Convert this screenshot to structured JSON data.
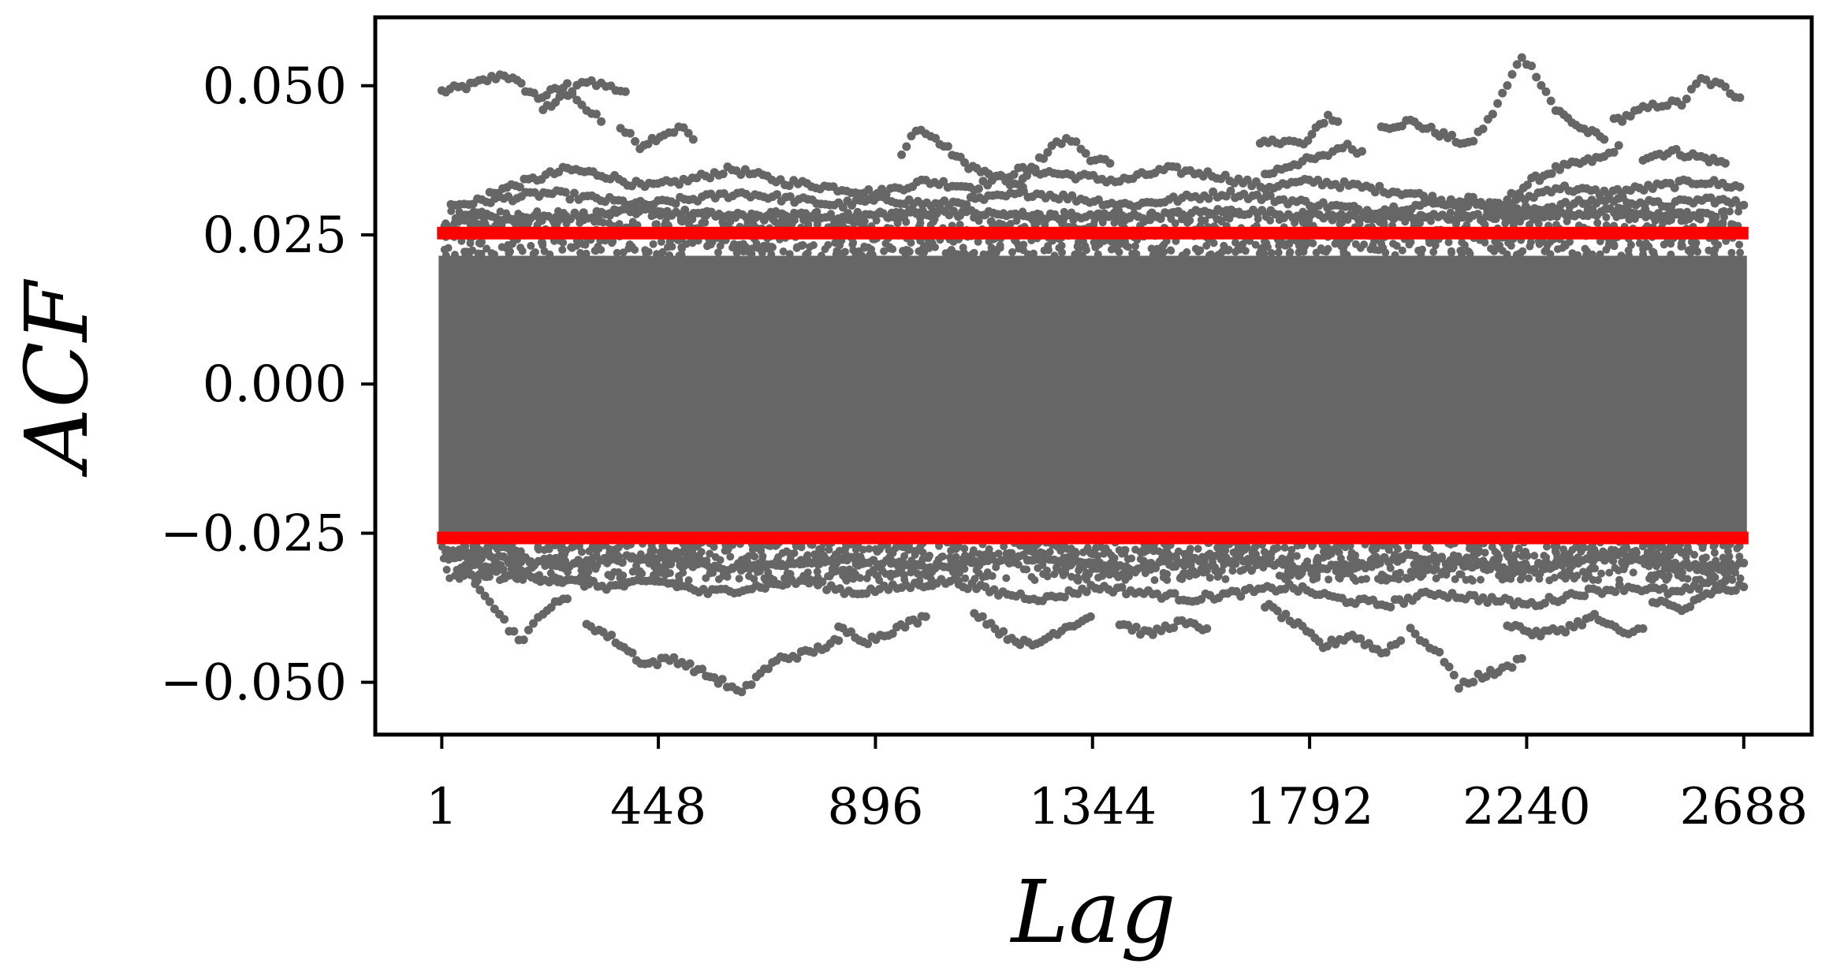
{
  "colors": {
    "points": "#666666",
    "threshold": "#ff0000",
    "axes": "#000000",
    "background": "#ffffff"
  },
  "chart_data": {
    "type": "scatter",
    "title": "",
    "xlabel": "Lag",
    "ylabel": "ACF",
    "xlim": [
      -133,
      2825
    ],
    "ylim": [
      -0.0585,
      0.0612
    ],
    "grid": false,
    "legend": "none",
    "x_ticks": [
      {
        "value": 1,
        "label": "1"
      },
      {
        "value": 448,
        "label": "448"
      },
      {
        "value": 896,
        "label": "896"
      },
      {
        "value": 1344,
        "label": "1344"
      },
      {
        "value": 1792,
        "label": "1792"
      },
      {
        "value": 2240,
        "label": "2240"
      },
      {
        "value": 2688,
        "label": "2688"
      }
    ],
    "y_ticks": [
      {
        "value": 0.05,
        "label": "0.050"
      },
      {
        "value": 0.025,
        "label": "0.025"
      },
      {
        "value": 0.0,
        "label": "0.000"
      },
      {
        "value": -0.025,
        "label": "−0.025"
      },
      {
        "value": -0.05,
        "label": "−0.050"
      }
    ],
    "series": [
      {
        "type": "scatter",
        "description_note": "",
        "x_range": [
          1,
          2688
        ],
        "dense_band": [
          -0.0265,
          0.0215
        ],
        "traces_above": [
          [
            [
              1,
              0.049
            ],
            [
              60,
              0.05
            ],
            [
              130,
              0.052
            ],
            [
              200,
              0.048
            ],
            [
              260,
              0.05
            ],
            [
              300,
              0.046
            ],
            [
              330,
              0.044
            ]
          ],
          [
            [
              210,
              0.046
            ],
            [
              270,
              0.049
            ],
            [
              300,
              0.051
            ],
            [
              340,
              0.05
            ],
            [
              380,
              0.049
            ]
          ],
          [
            [
              370,
              0.043
            ],
            [
              410,
              0.04
            ],
            [
              460,
              0.042
            ],
            [
              500,
              0.043
            ],
            [
              520,
              0.041
            ]
          ],
          [
            [
              950,
              0.038
            ],
            [
              980,
              0.043
            ],
            [
              1020,
              0.041
            ],
            [
              1080,
              0.037
            ],
            [
              1130,
              0.035
            ],
            [
              1200,
              0.033
            ]
          ],
          [
            [
              1200,
              0.034
            ],
            [
              1260,
              0.04
            ],
            [
              1300,
              0.041
            ],
            [
              1340,
              0.038
            ],
            [
              1380,
              0.037
            ]
          ],
          [
            [
              1690,
              0.04
            ],
            [
              1740,
              0.041
            ],
            [
              1780,
              0.04
            ],
            [
              1830,
              0.045
            ],
            [
              1850,
              0.044
            ]
          ],
          [
            [
              1700,
              0.035
            ],
            [
              1760,
              0.037
            ],
            [
              1820,
              0.038
            ],
            [
              1860,
              0.04
            ],
            [
              1900,
              0.039
            ]
          ],
          [
            [
              1940,
              0.043
            ],
            [
              2000,
              0.044
            ],
            [
              2060,
              0.042
            ],
            [
              2120,
              0.04
            ],
            [
              2160,
              0.044
            ],
            [
              2200,
              0.05
            ],
            [
              2230,
              0.055
            ],
            [
              2260,
              0.052
            ],
            [
              2300,
              0.046
            ],
            [
              2350,
              0.043
            ],
            [
              2400,
              0.041
            ]
          ],
          [
            [
              2200,
              0.031
            ],
            [
              2250,
              0.034
            ],
            [
              2300,
              0.036
            ],
            [
              2350,
              0.037
            ],
            [
              2400,
              0.038
            ],
            [
              2430,
              0.04
            ]
          ],
          [
            [
              2420,
              0.044
            ],
            [
              2480,
              0.046
            ],
            [
              2520,
              0.047
            ],
            [
              2560,
              0.047
            ],
            [
              2600,
              0.051
            ],
            [
              2640,
              0.05
            ],
            [
              2680,
              0.048
            ]
          ],
          [
            [
              2480,
              0.038
            ],
            [
              2540,
              0.039
            ],
            [
              2600,
              0.038
            ],
            [
              2650,
              0.037
            ]
          ],
          [
            [
              100,
              0.032
            ],
            [
              180,
              0.034
            ],
            [
              260,
              0.036
            ],
            [
              340,
              0.035
            ],
            [
              420,
              0.033
            ],
            [
              500,
              0.034
            ],
            [
              600,
              0.036
            ],
            [
              700,
              0.034
            ],
            [
              800,
              0.033
            ],
            [
              900,
              0.032
            ],
            [
              1000,
              0.034
            ],
            [
              1100,
              0.033
            ],
            [
              1200,
              0.036
            ],
            [
              1300,
              0.035
            ],
            [
              1400,
              0.034
            ],
            [
              1500,
              0.036
            ],
            [
              1600,
              0.035
            ],
            [
              1700,
              0.033
            ],
            [
              1800,
              0.034
            ],
            [
              1900,
              0.033
            ],
            [
              2000,
              0.032
            ],
            [
              2100,
              0.03
            ],
            [
              2200,
              0.03
            ],
            [
              2300,
              0.033
            ],
            [
              2400,
              0.032
            ],
            [
              2500,
              0.033
            ],
            [
              2600,
              0.034
            ],
            [
              2680,
              0.033
            ]
          ],
          [
            [
              20,
              0.03
            ],
            [
              120,
              0.031
            ],
            [
              220,
              0.032
            ],
            [
              320,
              0.031
            ],
            [
              420,
              0.03
            ],
            [
              520,
              0.031
            ],
            [
              620,
              0.032
            ],
            [
              720,
              0.031
            ],
            [
              820,
              0.03
            ],
            [
              920,
              0.031
            ],
            [
              1020,
              0.03
            ],
            [
              1120,
              0.031
            ],
            [
              1220,
              0.032
            ],
            [
              1320,
              0.031
            ],
            [
              1420,
              0.03
            ],
            [
              1520,
              0.031
            ],
            [
              1620,
              0.032
            ],
            [
              1720,
              0.031
            ],
            [
              1820,
              0.03
            ],
            [
              1920,
              0.029
            ],
            [
              2020,
              0.03
            ],
            [
              2120,
              0.031
            ],
            [
              2220,
              0.029
            ],
            [
              2320,
              0.03
            ],
            [
              2420,
              0.031
            ],
            [
              2520,
              0.03
            ],
            [
              2620,
              0.031
            ],
            [
              2688,
              0.03
            ]
          ],
          [
            [
              30,
              0.028
            ],
            [
              230,
              0.028
            ],
            [
              430,
              0.029
            ],
            [
              630,
              0.028
            ],
            [
              830,
              0.028
            ],
            [
              1030,
              0.029
            ],
            [
              1230,
              0.028
            ],
            [
              1430,
              0.028
            ],
            [
              1630,
              0.029
            ],
            [
              1830,
              0.028
            ],
            [
              2030,
              0.028
            ],
            [
              2230,
              0.028
            ],
            [
              2430,
              0.029
            ],
            [
              2630,
              0.028
            ]
          ]
        ],
        "traces_below": [
          [
            [
              60,
              -0.032
            ],
            [
              100,
              -0.036
            ],
            [
              140,
              -0.041
            ],
            [
              170,
              -0.043
            ],
            [
              210,
              -0.038
            ],
            [
              260,
              -0.036
            ]
          ],
          [
            [
              300,
              -0.04
            ],
            [
              360,
              -0.043
            ],
            [
              420,
              -0.047
            ],
            [
              480,
              -0.046
            ],
            [
              530,
              -0.048
            ],
            [
              580,
              -0.05
            ],
            [
              620,
              -0.052
            ],
            [
              650,
              -0.049
            ],
            [
              700,
              -0.046
            ],
            [
              760,
              -0.045
            ],
            [
              820,
              -0.043
            ]
          ],
          [
            [
              820,
              -0.041
            ],
            [
              880,
              -0.043
            ],
            [
              940,
              -0.041
            ],
            [
              1000,
              -0.039
            ]
          ],
          [
            [
              1100,
              -0.038
            ],
            [
              1160,
              -0.042
            ],
            [
              1220,
              -0.044
            ],
            [
              1280,
              -0.041
            ],
            [
              1340,
              -0.039
            ]
          ],
          [
            [
              1400,
              -0.04
            ],
            [
              1460,
              -0.042
            ],
            [
              1520,
              -0.04
            ],
            [
              1580,
              -0.041
            ]
          ],
          [
            [
              1700,
              -0.037
            ],
            [
              1760,
              -0.04
            ],
            [
              1820,
              -0.044
            ],
            [
              1880,
              -0.042
            ],
            [
              1940,
              -0.045
            ],
            [
              1980,
              -0.043
            ]
          ],
          [
            [
              2000,
              -0.041
            ],
            [
              2040,
              -0.044
            ],
            [
              2080,
              -0.047
            ],
            [
              2100,
              -0.051
            ],
            [
              2140,
              -0.049
            ],
            [
              2190,
              -0.048
            ],
            [
              2230,
              -0.046
            ]
          ],
          [
            [
              2200,
              -0.04
            ],
            [
              2260,
              -0.042
            ],
            [
              2320,
              -0.041
            ],
            [
              2380,
              -0.039
            ],
            [
              2440,
              -0.042
            ],
            [
              2480,
              -0.041
            ]
          ],
          [
            [
              2500,
              -0.036
            ],
            [
              2560,
              -0.038
            ],
            [
              2620,
              -0.035
            ],
            [
              2688,
              -0.034
            ]
          ],
          [
            [
              50,
              -0.03
            ],
            [
              150,
              -0.032
            ],
            [
              250,
              -0.033
            ],
            [
              350,
              -0.034
            ],
            [
              450,
              -0.033
            ],
            [
              550,
              -0.035
            ],
            [
              650,
              -0.034
            ],
            [
              750,
              -0.033
            ],
            [
              850,
              -0.035
            ],
            [
              950,
              -0.034
            ],
            [
              1050,
              -0.033
            ],
            [
              1150,
              -0.035
            ],
            [
              1250,
              -0.036
            ],
            [
              1350,
              -0.034
            ],
            [
              1450,
              -0.035
            ],
            [
              1550,
              -0.036
            ],
            [
              1650,
              -0.035
            ],
            [
              1750,
              -0.034
            ],
            [
              1850,
              -0.036
            ],
            [
              1950,
              -0.037
            ],
            [
              2050,
              -0.035
            ],
            [
              2150,
              -0.036
            ],
            [
              2250,
              -0.037
            ],
            [
              2350,
              -0.035
            ],
            [
              2450,
              -0.034
            ],
            [
              2550,
              -0.035
            ],
            [
              2650,
              -0.033
            ]
          ],
          [
            [
              10,
              -0.029
            ],
            [
              110,
              -0.029
            ],
            [
              210,
              -0.03
            ],
            [
              310,
              -0.03
            ],
            [
              410,
              -0.029
            ],
            [
              510,
              -0.03
            ],
            [
              610,
              -0.031
            ],
            [
              710,
              -0.03
            ],
            [
              810,
              -0.029
            ],
            [
              910,
              -0.03
            ],
            [
              1010,
              -0.031
            ],
            [
              1110,
              -0.03
            ],
            [
              1210,
              -0.029
            ],
            [
              1310,
              -0.03
            ],
            [
              1410,
              -0.031
            ],
            [
              1510,
              -0.03
            ],
            [
              1610,
              -0.029
            ],
            [
              1710,
              -0.03
            ],
            [
              1810,
              -0.031
            ],
            [
              1910,
              -0.03
            ],
            [
              2010,
              -0.029
            ],
            [
              2110,
              -0.03
            ],
            [
              2210,
              -0.031
            ],
            [
              2310,
              -0.03
            ],
            [
              2410,
              -0.029
            ],
            [
              2510,
              -0.03
            ],
            [
              2610,
              -0.031
            ],
            [
              2688,
              -0.03
            ]
          ]
        ]
      }
    ],
    "hlines": [
      {
        "y": 0.0253,
        "color": "#ff0000"
      },
      {
        "y": -0.0258,
        "color": "#ff0000"
      }
    ]
  }
}
